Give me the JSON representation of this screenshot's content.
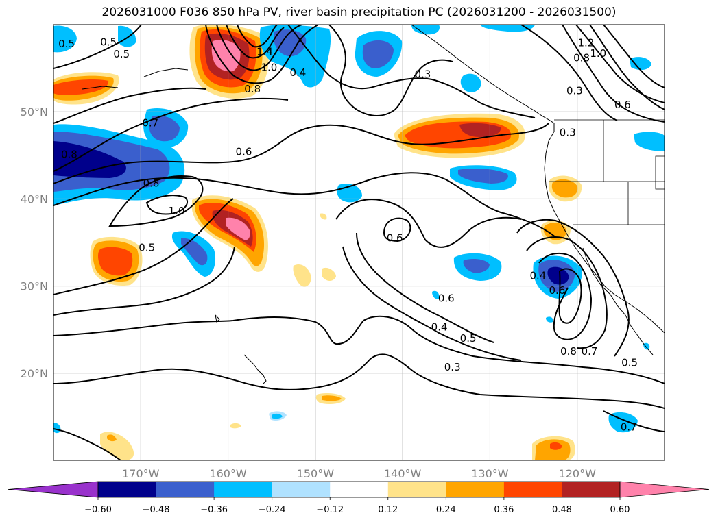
{
  "title": "2026031000 F036 850 hPa PV, river basin precipitation PC (2026031200 - 2026031500)",
  "map": {
    "lon_range": [
      -180,
      -110
    ],
    "lat_range": [
      10,
      60
    ],
    "lon_ticks": [
      {
        "lon": -170,
        "label": "170°W"
      },
      {
        "lon": -160,
        "label": "160°W"
      },
      {
        "lon": -150,
        "label": "150°W"
      },
      {
        "lon": -140,
        "label": "140°W"
      },
      {
        "lon": -130,
        "label": "130°W"
      },
      {
        "lon": -120,
        "label": "120°W"
      }
    ],
    "lat_ticks": [
      {
        "lat": 50,
        "label": "50°N"
      },
      {
        "lat": 40,
        "label": "40°N"
      },
      {
        "lat": 30,
        "label": "30°N"
      },
      {
        "lat": 20,
        "label": "20°N"
      }
    ],
    "grid": true
  },
  "colorbar": {
    "levels": [
      "−0.60",
      "−0.48",
      "−0.36",
      "−0.24",
      "−0.12",
      "0.12",
      "0.24",
      "0.36",
      "0.48",
      "0.60"
    ],
    "colors": {
      "below": "#9932cc",
      "neg_060": "#00008b",
      "neg_048": "#3a5fcd",
      "neg_036": "#00bfff",
      "neg_024": "#b0e2ff",
      "neutral": "#ffffff",
      "pos_012": "#ffe38a",
      "pos_024": "#ffa500",
      "pos_036": "#ff4500",
      "pos_048": "#b22222",
      "above": "#ff82ab"
    }
  },
  "contour_labels": [
    {
      "text": "0.5",
      "lon": -173.7,
      "lat": 58.0
    },
    {
      "text": "0.5",
      "lon": -172.2,
      "lat": 56.6
    },
    {
      "text": "0.5",
      "lon": -178.5,
      "lat": 57.8
    },
    {
      "text": "0.7",
      "lon": -168.9,
      "lat": 48.7
    },
    {
      "text": "0.8",
      "lon": -178.2,
      "lat": 45.1
    },
    {
      "text": "0.8",
      "lon": -168.8,
      "lat": 41.8
    },
    {
      "text": "1.0",
      "lon": -165.9,
      "lat": 38.6
    },
    {
      "text": "0.6",
      "lon": -158.2,
      "lat": 45.4
    },
    {
      "text": "0.5",
      "lon": -169.3,
      "lat": 34.4
    },
    {
      "text": "1.4",
      "lon": -155.8,
      "lat": 56.9
    },
    {
      "text": "1.0",
      "lon": -155.3,
      "lat": 55.1
    },
    {
      "text": "0.8",
      "lon": -157.2,
      "lat": 52.6
    },
    {
      "text": "0.4",
      "lon": -152.0,
      "lat": 54.5
    },
    {
      "text": "0.3",
      "lon": -137.7,
      "lat": 54.3
    },
    {
      "text": "0.3",
      "lon": -120.3,
      "lat": 52.4
    },
    {
      "text": "1.2",
      "lon": -119.0,
      "lat": 57.9
    },
    {
      "text": "1.0",
      "lon": -117.6,
      "lat": 56.7
    },
    {
      "text": "0.8",
      "lon": -119.5,
      "lat": 56.2
    },
    {
      "text": "0.6",
      "lon": -114.8,
      "lat": 50.8
    },
    {
      "text": "0.3",
      "lon": -121.1,
      "lat": 47.6
    },
    {
      "text": "0.6",
      "lon": -140.9,
      "lat": 35.5
    },
    {
      "text": "0.6",
      "lon": -135.0,
      "lat": 28.6
    },
    {
      "text": "0.4",
      "lon": -135.8,
      "lat": 25.3
    },
    {
      "text": "0.5",
      "lon": -132.5,
      "lat": 24.0
    },
    {
      "text": "0.3",
      "lon": -134.3,
      "lat": 20.7
    },
    {
      "text": "0.4",
      "lon": -124.5,
      "lat": 31.2
    },
    {
      "text": "0.6",
      "lon": -122.3,
      "lat": 29.5
    },
    {
      "text": "0.8",
      "lon": -121.0,
      "lat": 22.5
    },
    {
      "text": "0.7",
      "lon": -118.6,
      "lat": 22.5
    },
    {
      "text": "0.5",
      "lon": -114.0,
      "lat": 21.2
    },
    {
      "text": "0.7",
      "lon": -114.1,
      "lat": 13.8
    }
  ]
}
